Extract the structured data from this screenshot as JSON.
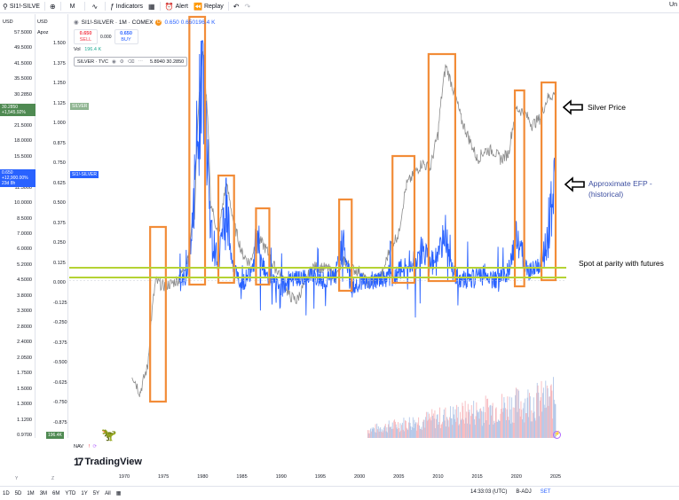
{
  "toolbar": {
    "symbol": "SI1!-SILVE",
    "interval": "M",
    "indicators": "Indicators",
    "alert": "Alert",
    "replay": "Replay",
    "right_text": "Un"
  },
  "left_scale": {
    "currency": "USD",
    "currency2": "USD",
    "mode": "Apoz",
    "ticks": [
      "57.5000",
      "49.5000",
      "41.5000",
      "35.5000",
      "30.2850",
      "25.5000",
      "21.5000",
      "18.0000",
      "15.5000",
      "13.5000",
      "11.5000",
      "10.0000",
      "8.5000",
      "7.0000",
      "6.0000",
      "5.2000",
      "4.5000",
      "3.8000",
      "3.3000",
      "2.8000",
      "2.4000",
      "2.0500",
      "1.7500",
      "1.5000",
      "1.3000",
      "1.1200",
      "0.9700"
    ],
    "ticks2": [
      "1.500",
      "1.375",
      "1.250",
      "1.125",
      "1.000",
      "0.875",
      "0.750",
      "0.625",
      "0.500",
      "0.375",
      "0.250",
      "0.125",
      "0.000",
      "-0.125",
      "-0.250",
      "-0.375",
      "-0.500",
      "-0.625",
      "-0.750",
      "-0.875"
    ],
    "price_tag_value": "30.2850",
    "price_tag_change": "+1,545.92%",
    "silver_label": "SILVER",
    "efp_tag_value": "0.650",
    "efp_tag_change": "+12,900.00%",
    "efp_tag_time": "23d 8h",
    "efp_label": "SI1!-SILVER",
    "vol_tag": "196.4K"
  },
  "legend": {
    "title": "SI1!-SILVER · 1M · COMEX",
    "ohlc": "0.650",
    "vol_inline": "0.650196.4 K",
    "sell_price": "0.650",
    "sell_label": "SELL",
    "spread": "0.000",
    "buy_price": "0.650",
    "buy_label": "BUY",
    "vol_label": "Vol",
    "vol_value": "196.4 K",
    "tvc_name": "SILVER · TVC",
    "tvc_values": "5.8940  30.2850"
  },
  "nav": {
    "label": "NAV"
  },
  "brand": {
    "name": "TradingView"
  },
  "time_axis": {
    "years": [
      "1970",
      "1975",
      "1980",
      "1985",
      "1990",
      "1995",
      "2000",
      "2005",
      "2010",
      "2015",
      "2020",
      "2025"
    ],
    "y_label": "Y",
    "z_label": "Z"
  },
  "bottom_bar": {
    "ranges": [
      "1D",
      "5D",
      "1M",
      "3M",
      "6M",
      "YTD",
      "1Y",
      "5Y",
      "All"
    ],
    "clock": "14:33:03 (UTC)",
    "badj": "B-ADJ",
    "set": "SET"
  },
  "annotations": {
    "silver_price": "Silver Price",
    "efp_line1": "Approximate EFP -",
    "efp_line2": "(historical)",
    "parity": "Spot at parity with futures"
  },
  "colors": {
    "price_line": "#8c8c8c",
    "efp": "#2962ff",
    "box": "#f28c38",
    "parity_box": "#b5d334",
    "volume_up": "#f7b8bd",
    "volume_down": "#b2c7e8",
    "tag_green": "#4f8a52",
    "tag_blue": "#2962ff",
    "efp_annot": "#3c4ea0"
  },
  "chart_data": {
    "type": "line",
    "x_range": [
      1970,
      2025
    ],
    "series": [
      {
        "name": "SILVER · TVC",
        "points": [
          [
            1971,
            1.75
          ],
          [
            1972,
            1.45
          ],
          [
            1973,
            1.9
          ],
          [
            1974,
            4.5
          ],
          [
            1975,
            4.3
          ],
          [
            1976,
            4.4
          ],
          [
            1977,
            4.6
          ],
          [
            1978,
            5.5
          ],
          [
            1979,
            9
          ],
          [
            1980,
            45
          ],
          [
            1981,
            10
          ],
          [
            1982,
            7
          ],
          [
            1983,
            12
          ],
          [
            1984,
            8
          ],
          [
            1985,
            6
          ],
          [
            1986,
            5.4
          ],
          [
            1987,
            7
          ],
          [
            1988,
            6.3
          ],
          [
            1989,
            5.3
          ],
          [
            1990,
            4.8
          ],
          [
            1991,
            3.9
          ],
          [
            1992,
            3.7
          ],
          [
            1993,
            4.4
          ],
          [
            1994,
            5.2
          ],
          [
            1995,
            5.2
          ],
          [
            1996,
            5.1
          ],
          [
            1997,
            4.7
          ],
          [
            1998,
            5.6
          ],
          [
            1999,
            5.1
          ],
          [
            2000,
            5.0
          ],
          [
            2001,
            4.4
          ],
          [
            2002,
            4.6
          ],
          [
            2003,
            4.9
          ],
          [
            2004,
            6.5
          ],
          [
            2005,
            7.3
          ],
          [
            2006,
            12
          ],
          [
            2007,
            13.4
          ],
          [
            2008,
            15
          ],
          [
            2009,
            14
          ],
          [
            2010,
            20
          ],
          [
            2011,
            40
          ],
          [
            2012,
            31
          ],
          [
            2013,
            23
          ],
          [
            2014,
            19
          ],
          [
            2015,
            15.5
          ],
          [
            2016,
            17
          ],
          [
            2017,
            17
          ],
          [
            2018,
            15.5
          ],
          [
            2019,
            16.5
          ],
          [
            2020,
            26
          ],
          [
            2021,
            25
          ],
          [
            2022,
            22
          ],
          [
            2023,
            23.5
          ],
          [
            2024,
            29
          ],
          [
            2025,
            30.285
          ]
        ]
      },
      {
        "name": "SI1!-SILVER",
        "points": [
          [
            1977,
            0.0
          ],
          [
            1978,
            0.02
          ],
          [
            1979,
            0.6
          ],
          [
            1980,
            1.5
          ],
          [
            1981,
            0.3
          ],
          [
            1982,
            0.1
          ],
          [
            1983,
            0.45
          ],
          [
            1984,
            0.05
          ],
          [
            1985,
            -0.02
          ],
          [
            1986,
            0.05
          ],
          [
            1987,
            0.25
          ],
          [
            1988,
            0.02
          ],
          [
            1989,
            0.0
          ],
          [
            1990,
            -0.05
          ],
          [
            1991,
            0.0
          ],
          [
            1992,
            0.0
          ],
          [
            1993,
            0.02
          ],
          [
            1994,
            0.03
          ],
          [
            1995,
            0.0
          ],
          [
            1996,
            0.0
          ],
          [
            1997,
            0.05
          ],
          [
            1998,
            0.25
          ],
          [
            1999,
            -0.05
          ],
          [
            2000,
            0.0
          ],
          [
            2001,
            0.0
          ],
          [
            2002,
            0.0
          ],
          [
            2003,
            0.0
          ],
          [
            2004,
            0.02
          ],
          [
            2005,
            0.05
          ],
          [
            2006,
            0.1
          ],
          [
            2007,
            0.12
          ],
          [
            2008,
            0.2
          ],
          [
            2009,
            0.1
          ],
          [
            2010,
            0.15
          ],
          [
            2011,
            0.3
          ],
          [
            2012,
            0.05
          ],
          [
            2013,
            0.0
          ],
          [
            2014,
            0.0
          ],
          [
            2015,
            0.02
          ],
          [
            2016,
            0.05
          ],
          [
            2017,
            0.0
          ],
          [
            2018,
            0.02
          ],
          [
            2019,
            0.05
          ],
          [
            2020,
            0.3
          ],
          [
            2021,
            0.1
          ],
          [
            2022,
            0.05
          ],
          [
            2023,
            0.1
          ],
          [
            2024,
            0.3
          ],
          [
            2025,
            0.65
          ]
        ]
      }
    ],
    "y_range_price": [
      0.97,
      57.5
    ],
    "y_range_efp": [
      -0.875,
      1.5
    ],
    "y_scale_price": "log",
    "grid": false,
    "annotation_boxes_years": [
      [
        1973.3,
        1975.3
      ],
      [
        1978.3,
        1980.3
      ],
      [
        1982.0,
        1984.0
      ],
      [
        1986.8,
        1988.5
      ],
      [
        1997.4,
        1999.0
      ],
      [
        2004.2,
        2007.0
      ],
      [
        2008.8,
        2012.2
      ],
      [
        2019.8,
        2021.0
      ],
      [
        2023.2,
        2025.0
      ]
    ]
  }
}
